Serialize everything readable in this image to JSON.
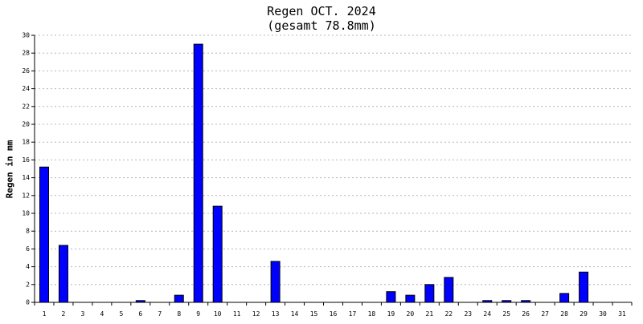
{
  "chart_data": {
    "type": "bar",
    "title": "Regen OCT. 2024",
    "subtitle": "(gesamt 78.8mm)",
    "xlabel": "",
    "ylabel": "Regen in mm",
    "categories": [
      "1",
      "2",
      "3",
      "4",
      "5",
      "6",
      "7",
      "8",
      "9",
      "10",
      "11",
      "12",
      "13",
      "14",
      "15",
      "16",
      "17",
      "18",
      "19",
      "20",
      "21",
      "22",
      "23",
      "24",
      "25",
      "26",
      "27",
      "28",
      "29",
      "30",
      "31"
    ],
    "values": [
      15.2,
      6.4,
      0,
      0,
      0,
      0.2,
      0,
      0.8,
      29.0,
      10.8,
      0,
      0,
      4.6,
      0,
      0,
      0,
      0,
      0,
      1.2,
      0.8,
      2.0,
      2.8,
      0,
      0.2,
      0.2,
      0.2,
      0,
      1.0,
      3.4,
      0,
      0
    ],
    "ylim": [
      0,
      30
    ],
    "yticks": [
      "0",
      "2",
      "4",
      "6",
      "8",
      "10",
      "12",
      "14",
      "16",
      "18",
      "20",
      "22",
      "24",
      "26",
      "28",
      "30"
    ],
    "grid": true,
    "legend": "none",
    "colors": {
      "bar": "#0000ff",
      "bar_outline": "#000000",
      "grid": "#b4b4b4",
      "axis": "#000000"
    }
  }
}
